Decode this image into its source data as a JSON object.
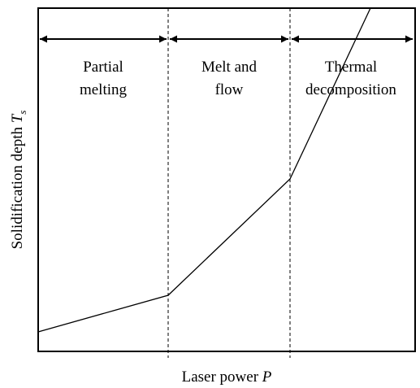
{
  "regions": [
    {
      "lines": [
        "Partial",
        "melting"
      ]
    },
    {
      "lines": [
        "Melt and",
        "flow"
      ]
    },
    {
      "lines": [
        "Thermal",
        "decomposition"
      ]
    }
  ],
  "x_axis": {
    "text": "Laser power",
    "variable": "P"
  },
  "y_axis": {
    "text": "Solidification depth",
    "variable": "T",
    "subscript": "s"
  }
}
